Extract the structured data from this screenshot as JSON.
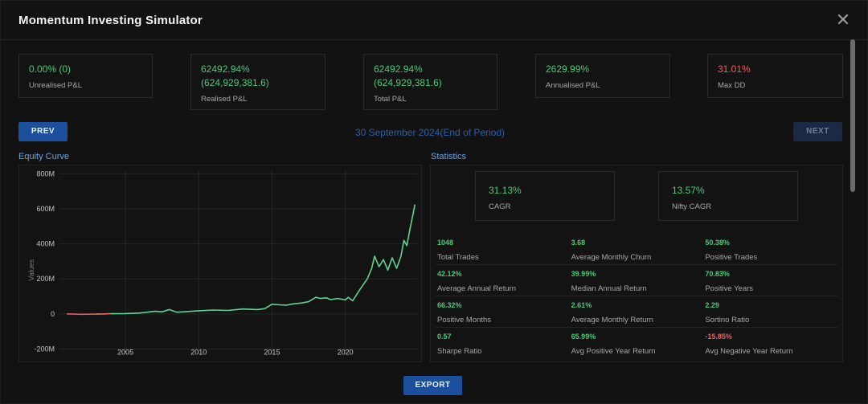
{
  "header": {
    "title": "Momentum Investing Simulator",
    "close_icon": "close-icon"
  },
  "summary_cards": [
    {
      "value1": "0.00% (0)",
      "value2": "",
      "label": "Unrealised P&L",
      "color": "#4cc97a"
    },
    {
      "value1": "62492.94%",
      "value2": "(624,929,381.6)",
      "label": "Realised P&L",
      "color": "#4cc97a"
    },
    {
      "value1": "62492.94%",
      "value2": "(624,929,381.6)",
      "label": "Total P&L",
      "color": "#4cc97a"
    },
    {
      "value1": "2629.99%",
      "value2": "",
      "label": "Annualised P&L",
      "color": "#4cc97a"
    },
    {
      "value1": "31.01%",
      "value2": "",
      "label": "Max DD",
      "color": "#ef5f5f"
    }
  ],
  "nav": {
    "prev_label": "PREV",
    "next_label": "NEXT",
    "date": "30 September 2024(End of Period)"
  },
  "equity_title": "Equity Curve",
  "statistics_title": "Statistics",
  "stat_cards": [
    {
      "value": "31.13%",
      "label": "CAGR"
    },
    {
      "value": "13.57%",
      "label": "Nifty CAGR"
    }
  ],
  "stats": [
    [
      {
        "value": "1048",
        "label": "Total Trades"
      },
      {
        "value": "3.68",
        "label": "Average Monthly Churn"
      },
      {
        "value": "50.38%",
        "label": "Positive Trades"
      }
    ],
    [
      {
        "value": "42.12%",
        "label": "Average Annual Return"
      },
      {
        "value": "39.99%",
        "label": "Median Annual Return"
      },
      {
        "value": "70.83%",
        "label": "Positive Years"
      }
    ],
    [
      {
        "value": "66.32%",
        "label": "Positive Months"
      },
      {
        "value": "2.61%",
        "label": "Average Monthly Return"
      },
      {
        "value": "2.29",
        "label": "Sortino Ratio"
      }
    ],
    [
      {
        "value": "0.57",
        "label": "Sharpe Ratio"
      },
      {
        "value": "65.99%",
        "label": "Avg Positive Year Return"
      },
      {
        "value": "-15.85%",
        "label": "Avg Negative Year Return",
        "negative": true
      }
    ]
  ],
  "export_label": "EXPORT",
  "chart_data": {
    "type": "line",
    "title": "Equity Curve",
    "ylabel": "Values",
    "xlabel": "",
    "xlim": [
      2000.5,
      2024.9
    ],
    "ylim": [
      -230000000,
      820000000
    ],
    "x_ticks": [
      2005,
      2010,
      2015,
      2020
    ],
    "y_ticks": [
      -200000000,
      0,
      200000000,
      400000000,
      600000000,
      800000000
    ],
    "y_tick_labels": [
      "-200M",
      "0",
      "200M",
      "400M",
      "600M",
      "800M"
    ],
    "grid": true,
    "series": [
      {
        "color": "#5fd394",
        "negative_color": "#e0605a",
        "x": [
          2001.0,
          2002.0,
          2003.0,
          2004.0,
          2005.0,
          2006.0,
          2007.0,
          2007.5,
          2008.0,
          2008.5,
          2009.0,
          2010.0,
          2011.0,
          2012.0,
          2013.0,
          2014.0,
          2014.5,
          2015.0,
          2015.5,
          2016.0,
          2016.5,
          2017.0,
          2017.5,
          2018.0,
          2018.3,
          2018.7,
          2019.0,
          2019.5,
          2020.0,
          2020.2,
          2020.5,
          2021.0,
          2021.5,
          2021.8,
          2022.0,
          2022.3,
          2022.6,
          2022.9,
          2023.2,
          2023.5,
          2023.8,
          2024.0,
          2024.2,
          2024.4,
          2024.6,
          2024.75
        ],
        "y": [
          0,
          -2000000,
          -1000000,
          1000000,
          2000000,
          5000000,
          15000000,
          12000000,
          25000000,
          10000000,
          12000000,
          18000000,
          22000000,
          20000000,
          28000000,
          25000000,
          30000000,
          55000000,
          52000000,
          50000000,
          58000000,
          62000000,
          70000000,
          95000000,
          88000000,
          92000000,
          82000000,
          88000000,
          80000000,
          95000000,
          75000000,
          140000000,
          200000000,
          260000000,
          330000000,
          270000000,
          310000000,
          250000000,
          320000000,
          260000000,
          330000000,
          420000000,
          390000000,
          480000000,
          560000000,
          625000000
        ]
      }
    ]
  }
}
